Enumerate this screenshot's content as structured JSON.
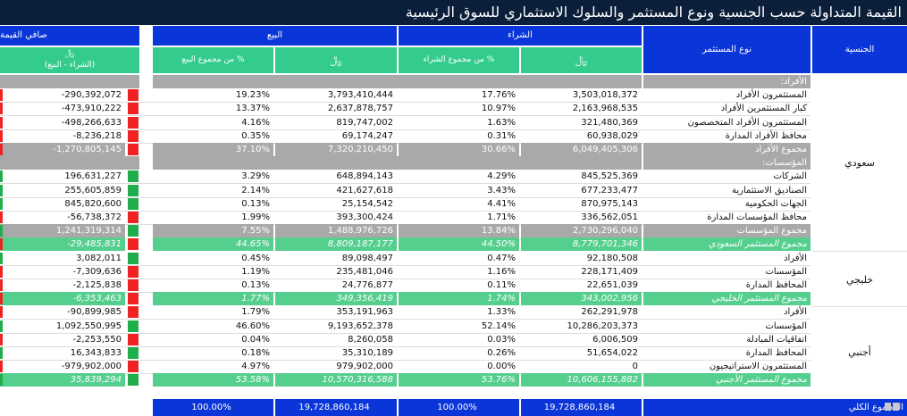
{
  "title": "القيمة المتداولة حسب الجنسية ونوع المستثمر والسلوك الاستثماري للسوق الرئيسية",
  "headers": {
    "nationality": "الجنسية",
    "investor_type": "نوع المستثمر",
    "buy": "الشراء",
    "sell": "البيع",
    "net": "صافي القيمة",
    "currency": "﷼",
    "pct_buy": "% من مجموع الشراء",
    "pct_sell": "% من مجموع البيع",
    "net_sub": "(الشراء - البيع)"
  },
  "nationalities": [
    "سعودي",
    "خليجي",
    "أجنبي"
  ],
  "rows": [
    {
      "kind": "header",
      "label": "الأفراد:"
    },
    {
      "kind": "data",
      "label": "المستثمرون الأفراد",
      "buy": "3,503,018,372",
      "buy_pct": "17.76%",
      "sell": "3,793,410,444",
      "sell_pct": "19.23%",
      "net": "-290,392,072",
      "flag": "red"
    },
    {
      "kind": "data",
      "label": "كبار المستثمرين الأفراد",
      "buy": "2,163,968,535",
      "buy_pct": "10.97%",
      "sell": "2,637,878,757",
      "sell_pct": "13.37%",
      "net": "-473,910,222",
      "flag": "red"
    },
    {
      "kind": "data",
      "label": "المستثمرون الأفراد المتخصصون",
      "buy": "321,480,369",
      "buy_pct": "1.63%",
      "sell": "819,747,002",
      "sell_pct": "4.16%",
      "net": "-498,266,633",
      "flag": "red"
    },
    {
      "kind": "data",
      "label": "محافظ الأفراد المدارة",
      "buy": "60,938,029",
      "buy_pct": "0.31%",
      "sell": "69,174,247",
      "sell_pct": "0.35%",
      "net": "-8,236,218",
      "flag": "red"
    },
    {
      "kind": "subtotal",
      "label": "مجموع الأفراد",
      "buy": "6,049,405,306",
      "buy_pct": "30.66%",
      "sell": "7,320,210,450",
      "sell_pct": "37.10%",
      "net": "-1,270,805,145",
      "flag": "red"
    },
    {
      "kind": "header",
      "label": "المؤسسات:"
    },
    {
      "kind": "data",
      "label": "الشركات",
      "buy": "845,525,369",
      "buy_pct": "4.29%",
      "sell": "648,894,143",
      "sell_pct": "3.29%",
      "net": "196,631,227",
      "flag": "green"
    },
    {
      "kind": "data",
      "label": "الصناديق الاستثمارية",
      "buy": "677,233,477",
      "buy_pct": "3.43%",
      "sell": "421,627,618",
      "sell_pct": "2.14%",
      "net": "255,605,859",
      "flag": "green"
    },
    {
      "kind": "data",
      "label": "الجهات الحكومية",
      "buy": "870,975,143",
      "buy_pct": "4.41%",
      "sell": "25,154,542",
      "sell_pct": "0.13%",
      "net": "845,820,600",
      "flag": "green"
    },
    {
      "kind": "data",
      "label": "محافظ المؤسسات المدارة",
      "buy": "336,562,051",
      "buy_pct": "1.71%",
      "sell": "393,300,424",
      "sell_pct": "1.99%",
      "net": "-56,738,372",
      "flag": "red"
    },
    {
      "kind": "subtotal",
      "label": "مجموع المؤسسات",
      "buy": "2,730,296,040",
      "buy_pct": "13.84%",
      "sell": "1,488,976,726",
      "sell_pct": "7.55%",
      "net": "1,241,319,314",
      "flag": "green"
    },
    {
      "kind": "total",
      "label": "مجموع المستثمر السعودي",
      "buy": "8,779,701,346",
      "buy_pct": "44.50%",
      "sell": "8,809,187,177",
      "sell_pct": "44.65%",
      "net": "-29,485,831",
      "flag": "red"
    },
    {
      "kind": "data",
      "label": "الأفراد",
      "buy": "92,180,508",
      "buy_pct": "0.47%",
      "sell": "89,098,497",
      "sell_pct": "0.45%",
      "net": "3,082,011",
      "flag": "green"
    },
    {
      "kind": "data",
      "label": "المؤسسات",
      "buy": "228,171,409",
      "buy_pct": "1.16%",
      "sell": "235,481,046",
      "sell_pct": "1.19%",
      "net": "-7,309,636",
      "flag": "red"
    },
    {
      "kind": "data",
      "label": "المحافظ المدارة",
      "buy": "22,651,039",
      "buy_pct": "0.11%",
      "sell": "24,776,877",
      "sell_pct": "0.13%",
      "net": "-2,125,838",
      "flag": "red"
    },
    {
      "kind": "total",
      "label": "مجموع المستثمر الخليجي",
      "buy": "343,002,956",
      "buy_pct": "1.74%",
      "sell": "349,356,419",
      "sell_pct": "1.77%",
      "net": "-6,353,463",
      "flag": "red"
    },
    {
      "kind": "data",
      "label": "الأفراد",
      "buy": "262,291,978",
      "buy_pct": "1.33%",
      "sell": "353,191,963",
      "sell_pct": "1.79%",
      "net": "-90,899,985",
      "flag": "red"
    },
    {
      "kind": "data",
      "label": "المؤسسات",
      "buy": "10,286,203,373",
      "buy_pct": "52.14%",
      "sell": "9,193,652,378",
      "sell_pct": "46.60%",
      "net": "1,092,550,995",
      "flag": "green"
    },
    {
      "kind": "data",
      "label": "اتفاقيات المبادلة",
      "buy": "6,006,509",
      "buy_pct": "0.03%",
      "sell": "8,260,058",
      "sell_pct": "0.04%",
      "net": "-2,253,550",
      "flag": "red"
    },
    {
      "kind": "data",
      "label": "المحافظ المدارة",
      "buy": "51,654,022",
      "buy_pct": "0.26%",
      "sell": "35,310,189",
      "sell_pct": "0.18%",
      "net": "16,343,833",
      "flag": "green"
    },
    {
      "kind": "data",
      "label": "المستثمرون الاستراتيجيون",
      "buy": "0",
      "buy_pct": "0.00%",
      "sell": "979,902,000",
      "sell_pct": "4.97%",
      "net": "-979,902,000",
      "flag": "red"
    },
    {
      "kind": "total",
      "label": "مجموع المستثمر الأجنبي",
      "buy": "10,606,155,882",
      "buy_pct": "53.76%",
      "sell": "10,570,316,588",
      "sell_pct": "53.58%",
      "net": "35,839,294",
      "flag": "green"
    }
  ],
  "grand_total": {
    "label": "المجموع الكلي",
    "buy": "19,728,860,184",
    "buy_pct": "100.00%",
    "sell": "19,728,860,184",
    "sell_pct": "100.00%"
  }
}
